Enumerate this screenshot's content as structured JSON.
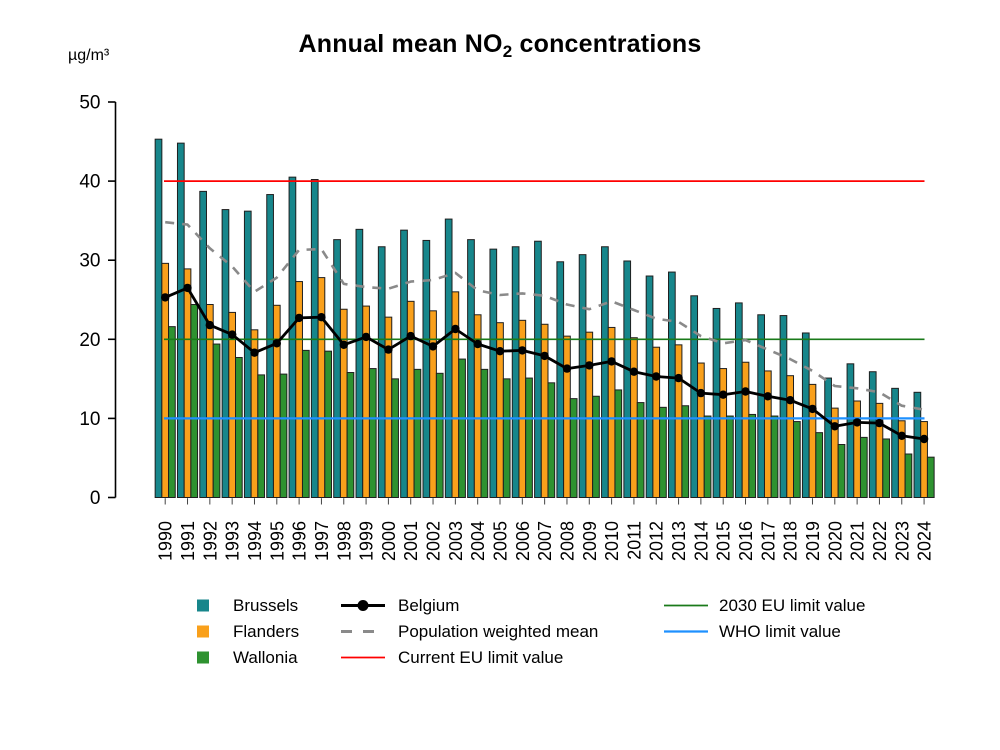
{
  "title": {
    "pre": "Annual mean NO",
    "sub": "2",
    "post": " concentrations"
  },
  "y_axis": {
    "unit_label": "µg/m³",
    "ticks": [
      0,
      10,
      20,
      30,
      40,
      50
    ]
  },
  "chart_data": {
    "type": "bar+line",
    "title": "Annual mean NO2 concentrations",
    "ylabel": "µg/m³",
    "xlabel": "",
    "ylim": [
      0,
      50
    ],
    "grid": false,
    "legend_position": "bottom",
    "categories": [
      "1990",
      "1991",
      "1992",
      "1993",
      "1994",
      "1995",
      "1996",
      "1997",
      "1998",
      "1999",
      "2000",
      "2001",
      "2002",
      "2003",
      "2004",
      "2005",
      "2006",
      "2007",
      "2008",
      "2009",
      "2010",
      "2011",
      "2012",
      "2013",
      "2014",
      "2015",
      "2016",
      "2017",
      "2018",
      "2019",
      "2020",
      "2021",
      "2022",
      "2023",
      "2024"
    ],
    "bar_series": [
      {
        "name": "Brussels",
        "color": "#17868b",
        "values": [
          45.3,
          44.8,
          38.7,
          36.4,
          36.2,
          38.3,
          40.5,
          40.2,
          32.6,
          33.9,
          31.7,
          33.8,
          32.5,
          35.2,
          32.6,
          31.4,
          31.7,
          32.4,
          29.8,
          30.7,
          31.7,
          29.9,
          28.0,
          28.5,
          25.5,
          23.9,
          24.6,
          23.1,
          23.0,
          20.8,
          15.1,
          16.9,
          15.9,
          13.8,
          13.3
        ]
      },
      {
        "name": "Flanders",
        "color": "#f9a01b",
        "values": [
          29.6,
          28.9,
          24.4,
          23.4,
          21.2,
          24.3,
          27.3,
          27.8,
          23.8,
          24.2,
          22.8,
          24.8,
          23.6,
          26.0,
          23.1,
          22.1,
          22.4,
          21.9,
          20.4,
          20.9,
          21.5,
          20.2,
          19.0,
          19.3,
          17.0,
          16.3,
          17.1,
          16.0,
          15.4,
          14.3,
          11.3,
          12.2,
          11.9,
          9.7,
          9.6
        ]
      },
      {
        "name": "Wallonia",
        "color": "#2e9230",
        "values": [
          21.6,
          24.4,
          19.4,
          17.7,
          15.5,
          15.6,
          18.6,
          18.5,
          15.8,
          16.3,
          15.0,
          16.2,
          15.7,
          17.5,
          16.2,
          15.0,
          15.1,
          14.5,
          12.5,
          12.8,
          13.6,
          12.0,
          11.4,
          11.6,
          10.3,
          10.3,
          10.5,
          10.3,
          9.6,
          8.2,
          6.7,
          7.6,
          7.4,
          5.5,
          5.1
        ]
      }
    ],
    "line_series": [
      {
        "name": "Belgium",
        "style": "solid-dot",
        "color": "#000000",
        "values": [
          25.3,
          26.5,
          21.8,
          20.6,
          18.3,
          19.5,
          22.7,
          22.8,
          19.3,
          20.3,
          18.7,
          20.4,
          19.1,
          21.3,
          19.4,
          18.5,
          18.6,
          17.9,
          16.3,
          16.7,
          17.2,
          15.9,
          15.3,
          15.1,
          13.2,
          13.0,
          13.4,
          12.8,
          12.3,
          11.2,
          9.0,
          9.5,
          9.4,
          7.8,
          7.4
        ]
      },
      {
        "name": "Population weighted mean",
        "style": "dashed",
        "color": "#8a8a8a",
        "values": [
          34.8,
          34.5,
          31.5,
          29.2,
          26.0,
          27.8,
          31.3,
          31.4,
          27.0,
          26.6,
          26.4,
          27.3,
          27.5,
          28.4,
          26.2,
          25.6,
          25.8,
          25.5,
          24.4,
          23.8,
          24.8,
          23.7,
          22.6,
          22.2,
          20.4,
          19.5,
          19.9,
          18.7,
          17.5,
          16.0,
          14.1,
          13.8,
          13.3,
          11.6,
          11.1
        ]
      }
    ],
    "reference_lines": [
      {
        "name": "Current EU limit value",
        "value": 40,
        "color": "#ff0000"
      },
      {
        "name": "2030 EU limit value",
        "value": 20,
        "color": "#1a7a1a"
      },
      {
        "name": "WHO limit value",
        "value": 10,
        "color": "#1e90ff"
      }
    ]
  }
}
